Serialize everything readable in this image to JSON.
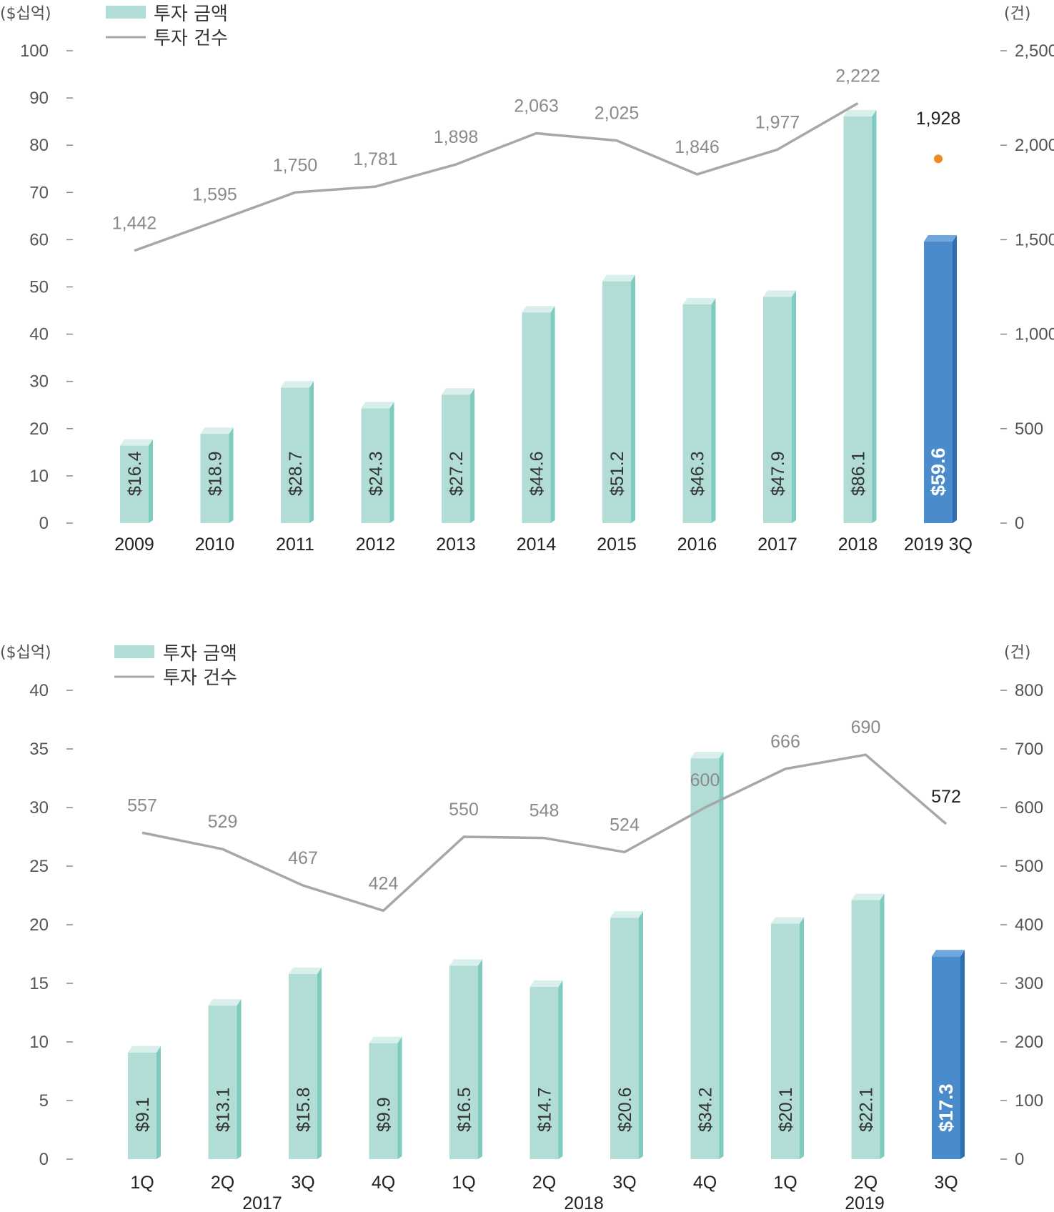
{
  "chart_data": [
    {
      "type": "bar",
      "left_unit": "($십억)",
      "right_unit": "(건)",
      "legend": {
        "bar": "투자 금액",
        "line": "투자 건수"
      },
      "categories": [
        "2009",
        "2010",
        "2011",
        "2012",
        "2013",
        "2014",
        "2015",
        "2016",
        "2017",
        "2018",
        "2019 3Q"
      ],
      "series": [
        {
          "name": "투자 금액",
          "axis": "left",
          "values": [
            16.4,
            18.9,
            28.7,
            24.3,
            27.2,
            44.6,
            51.2,
            46.3,
            47.9,
            86.1,
            59.6
          ],
          "labels": [
            "$16.4",
            "$18.9",
            "$28.7",
            "$24.3",
            "$27.2",
            "$44.6",
            "$51.2",
            "$46.3",
            "$47.9",
            "$86.1",
            "$59.6"
          ]
        },
        {
          "name": "투자 건수",
          "axis": "right",
          "values": [
            1442,
            1595,
            1750,
            1781,
            1898,
            2063,
            2025,
            1846,
            1977,
            2222,
            1928
          ],
          "labels": [
            "1,442",
            "1,595",
            "1,750",
            "1,781",
            "1,898",
            "2,063",
            "2,025",
            "1,846",
            "1,977",
            "2,222",
            "1,928"
          ]
        }
      ],
      "left_ticks": [
        "0",
        "10",
        "20",
        "30",
        "40",
        "50",
        "60",
        "70",
        "80",
        "90",
        "100"
      ],
      "right_ticks": [
        "0",
        "500",
        "1,000",
        "1,500",
        "2,000",
        "2,500"
      ],
      "ylim": [
        0,
        100
      ],
      "y2lim": [
        0,
        2500
      ],
      "colors": {
        "bar": "#b2ddd6",
        "bar_side": "#7ecbbf",
        "highlight_bar": "#4a8bcb",
        "line": "#a7a7a7",
        "highlight_point": "#f0891f"
      }
    },
    {
      "type": "bar",
      "left_unit": "($십억)",
      "right_unit": "(건)",
      "legend": {
        "bar": "투자 금액",
        "line": "투자 건수"
      },
      "categories": [
        "1Q",
        "2Q",
        "3Q",
        "4Q",
        "1Q",
        "2Q",
        "3Q",
        "4Q",
        "1Q",
        "2Q",
        "3Q"
      ],
      "groups": [
        "2017",
        "2018",
        "2019"
      ],
      "series": [
        {
          "name": "투자 금액",
          "axis": "left",
          "values": [
            9.1,
            13.1,
            15.8,
            9.9,
            16.5,
            14.7,
            20.6,
            34.2,
            20.1,
            22.1,
            17.3
          ],
          "labels": [
            "$9.1",
            "$13.1",
            "$15.8",
            "$9.9",
            "$16.5",
            "$14.7",
            "$20.6",
            "$34.2",
            "$20.1",
            "$22.1",
            "$17.3"
          ]
        },
        {
          "name": "투자 건수",
          "axis": "right",
          "values": [
            557,
            529,
            467,
            424,
            550,
            548,
            524,
            600,
            666,
            690,
            572
          ],
          "labels": [
            "557",
            "529",
            "467",
            "424",
            "550",
            "548",
            "524",
            "600",
            "666",
            "690",
            "572"
          ]
        }
      ],
      "left_ticks": [
        "0",
        "5",
        "10",
        "15",
        "20",
        "25",
        "30",
        "35",
        "40"
      ],
      "right_ticks": [
        "0",
        "100",
        "200",
        "300",
        "400",
        "500",
        "600",
        "700",
        "800"
      ],
      "ylim": [
        0,
        40
      ],
      "y2lim": [
        0,
        800
      ],
      "colors": {
        "bar": "#b2ddd6",
        "bar_side": "#7ecbbf",
        "highlight_bar": "#4a8bcb",
        "line": "#a7a7a7"
      }
    }
  ]
}
